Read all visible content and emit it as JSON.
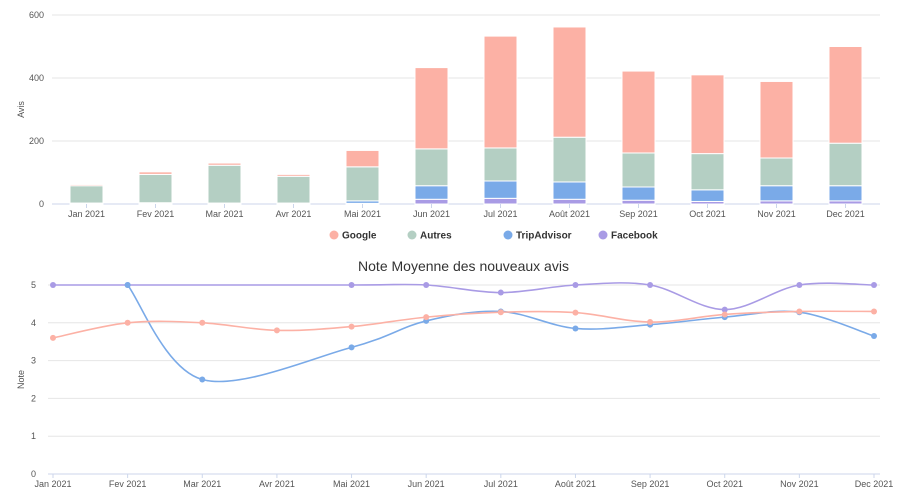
{
  "chart_data": [
    {
      "type": "bar",
      "stacked": true,
      "title": "",
      "xlabel": "",
      "ylabel": "Avis",
      "ylim": [
        0,
        600
      ],
      "yticks": [
        0,
        200,
        400,
        600
      ],
      "grid": true,
      "legend_position": "bottom-center",
      "categories": [
        "Jan 2021",
        "Fev 2021",
        "Mar 2021",
        "Avr 2021",
        "Mai 2021",
        "Jun 2021",
        "Jul 2021",
        "Août 2021",
        "Sep 2021",
        "Oct 2021",
        "Nov 2021",
        "Dec 2021"
      ],
      "series": [
        {
          "name": "Facebook",
          "color": "#a99be5",
          "values": [
            1,
            1,
            1,
            1,
            2,
            15,
            18,
            15,
            12,
            8,
            10,
            10
          ]
        },
        {
          "name": "TripAdvisor",
          "color": "#7aaae8",
          "values": [
            2,
            3,
            2,
            2,
            8,
            43,
            55,
            55,
            42,
            37,
            48,
            48
          ]
        },
        {
          "name": "Autres",
          "color": "#b4cfc3",
          "values": [
            55,
            90,
            120,
            85,
            108,
            117,
            105,
            142,
            108,
            115,
            88,
            135
          ]
        },
        {
          "name": "Google",
          "color": "#fcb1a5",
          "values": [
            4,
            8,
            7,
            6,
            52,
            258,
            355,
            350,
            260,
            250,
            243,
            307
          ]
        }
      ],
      "legend_order": [
        "Google",
        "Autres",
        "TripAdvisor",
        "Facebook"
      ]
    },
    {
      "type": "line",
      "smooth": true,
      "title": "Note Moyenne des nouveaux avis",
      "xlabel": "",
      "ylabel": "Note",
      "ylim": [
        0,
        5
      ],
      "yticks": [
        0,
        1,
        2,
        3,
        4,
        5
      ],
      "grid": true,
      "categories": [
        "Jan 2021",
        "Fev 2021",
        "Mar 2021",
        "Avr 2021",
        "Mai 2021",
        "Jun 2021",
        "Jul 2021",
        "Août 2021",
        "Sep 2021",
        "Oct 2021",
        "Nov 2021",
        "Dec 2021"
      ],
      "series": [
        {
          "name": "Facebook",
          "color": "#a99be5",
          "values": [
            5,
            5,
            null,
            null,
            5,
            5,
            4.8,
            5,
            5,
            4.35,
            5,
            5
          ]
        },
        {
          "name": "TripAdvisor",
          "color": "#7aaae8",
          "values": [
            null,
            5,
            2.5,
            null,
            3.35,
            4.05,
            4.3,
            3.85,
            3.95,
            4.15,
            4.28,
            3.65
          ]
        },
        {
          "name": "Google",
          "color": "#fcb1a5",
          "values": [
            3.6,
            4.0,
            4.0,
            3.8,
            3.9,
            4.15,
            4.28,
            4.27,
            4.02,
            4.22,
            4.3,
            4.3
          ]
        }
      ]
    }
  ]
}
